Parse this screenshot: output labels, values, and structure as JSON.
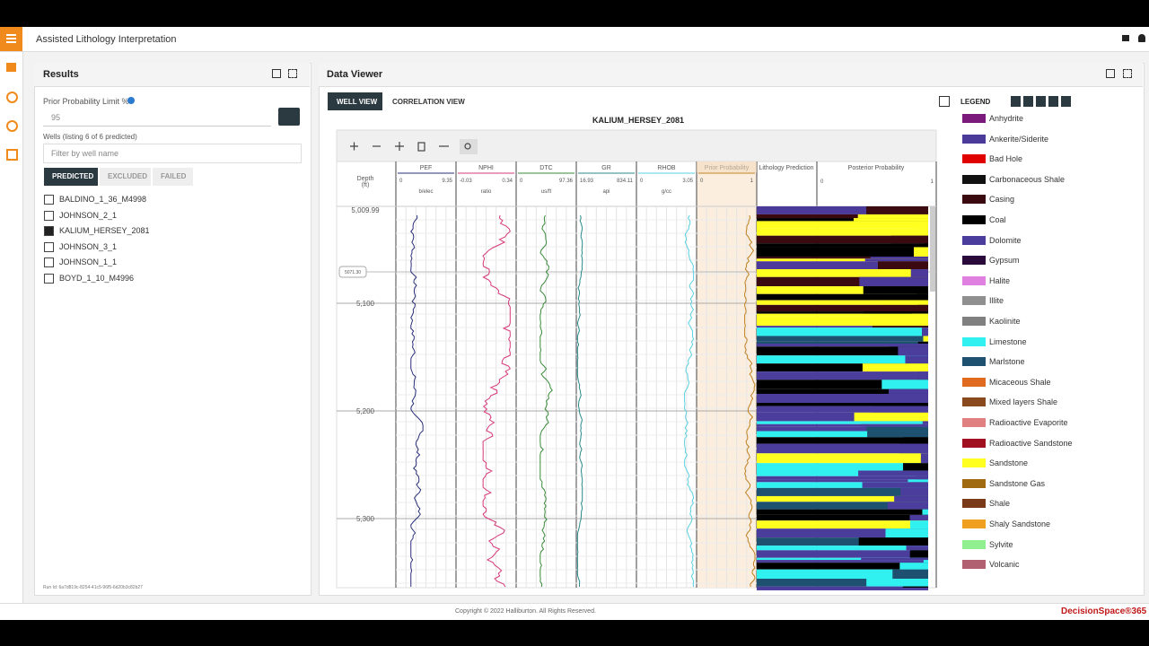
{
  "header": {
    "title": "Assisted Lithology Interpretation"
  },
  "results": {
    "title": "Results",
    "prior_label": "Prior Probability Limit %",
    "prior_value": "95",
    "wells_label": "Wells (listing 6 of 6 predicted)",
    "filter_placeholder": "Filter by well name",
    "tabs": [
      "PREDICTED",
      "EXCLUDED",
      "FAILED"
    ],
    "wells": [
      {
        "name": "BALDINO_1_36_M4998",
        "checked": false
      },
      {
        "name": "JOHNSON_2_1",
        "checked": false
      },
      {
        "name": "KALIUM_HERSEY_2081",
        "checked": true
      },
      {
        "name": "JOHNSON_3_1",
        "checked": false
      },
      {
        "name": "JOHNSON_1_1",
        "checked": false
      },
      {
        "name": "BOYD_1_10_M4996",
        "checked": false
      }
    ],
    "run_id": "Run Id: 6a7d819c-8254-41c5-96f5-6d20b3c82b27"
  },
  "viewer": {
    "title": "Data Viewer",
    "tabs": [
      "WELL VIEW",
      "CORRELATION VIEW"
    ],
    "well": "KALIUM_HERSEY_2081",
    "depth_header": [
      "Depth",
      "(ft)"
    ],
    "tracks": [
      {
        "name": "PEF",
        "min": "0",
        "max": "9.35",
        "unit": "b/elec",
        "color": "#2a2f7a"
      },
      {
        "name": "NPHI",
        "min": "-0.03",
        "max": "0.34",
        "unit": "ratio",
        "color": "#d6387a"
      },
      {
        "name": "DTC",
        "min": "0",
        "max": "97.36",
        "unit": "us/ft",
        "color": "#3a8a3a"
      },
      {
        "name": "GR",
        "min": "16.93",
        "max": "834.11",
        "unit": "api",
        "color": "#2a8a8a"
      },
      {
        "name": "RHOB",
        "min": "0",
        "max": "3.05",
        "unit": "g/cc",
        "color": "#5ad0e0"
      }
    ],
    "prior": {
      "name": "Prior Probability",
      "min": "0",
      "max": "1",
      "color": "#c08020"
    },
    "lithology": "Lithology Prediction",
    "posterior": {
      "name": "Posterior Probability",
      "min": "0",
      "max": "1"
    },
    "depth_labels": [
      "5,009.99",
      "5,100",
      "5,200",
      "5,300"
    ],
    "cursor": "5071.30"
  },
  "legend": {
    "title": "LEGEND",
    "items": [
      {
        "name": "Anhydrite",
        "color": "#7b1a7b"
      },
      {
        "name": "Ankerite/Siderite",
        "color": "#4b3a9a"
      },
      {
        "name": "Bad Hole",
        "color": "#e00000"
      },
      {
        "name": "Carbonaceous Shale",
        "color": "#111111"
      },
      {
        "name": "Casing",
        "color": "#3a0a10"
      },
      {
        "name": "Coal",
        "color": "#000000"
      },
      {
        "name": "Dolomite",
        "color": "#4a3d9c"
      },
      {
        "name": "Gypsum",
        "color": "#2a0a3a"
      },
      {
        "name": "Halite",
        "color": "#e080e0"
      },
      {
        "name": "Illite",
        "color": "#909090"
      },
      {
        "name": "Kaolinite",
        "color": "#808080"
      },
      {
        "name": "Limestone",
        "color": "#30f0f0"
      },
      {
        "name": "Marlstone",
        "color": "#1e5070"
      },
      {
        "name": "Micaceous Shale",
        "color": "#e06a20"
      },
      {
        "name": "Mixed layers Shale",
        "color": "#8a4a20"
      },
      {
        "name": "Radioactive Evaporite",
        "color": "#e08080"
      },
      {
        "name": "Radioactive Sandstone",
        "color": "#a01020"
      },
      {
        "name": "Sandstone",
        "color": "#ffff20"
      },
      {
        "name": "Sandstone Gas",
        "color": "#a06a10"
      },
      {
        "name": "Shale",
        "color": "#7a3a1a"
      },
      {
        "name": "Shaly Sandstone",
        "color": "#f0a020"
      },
      {
        "name": "Sylvite",
        "color": "#90f090"
      },
      {
        "name": "Volcanic",
        "color": "#b06070"
      }
    ]
  },
  "footer": {
    "copyright": "Copyright © 2022 Halliburton. All Rights Reserved.",
    "brand": "DecisionSpace®365"
  }
}
